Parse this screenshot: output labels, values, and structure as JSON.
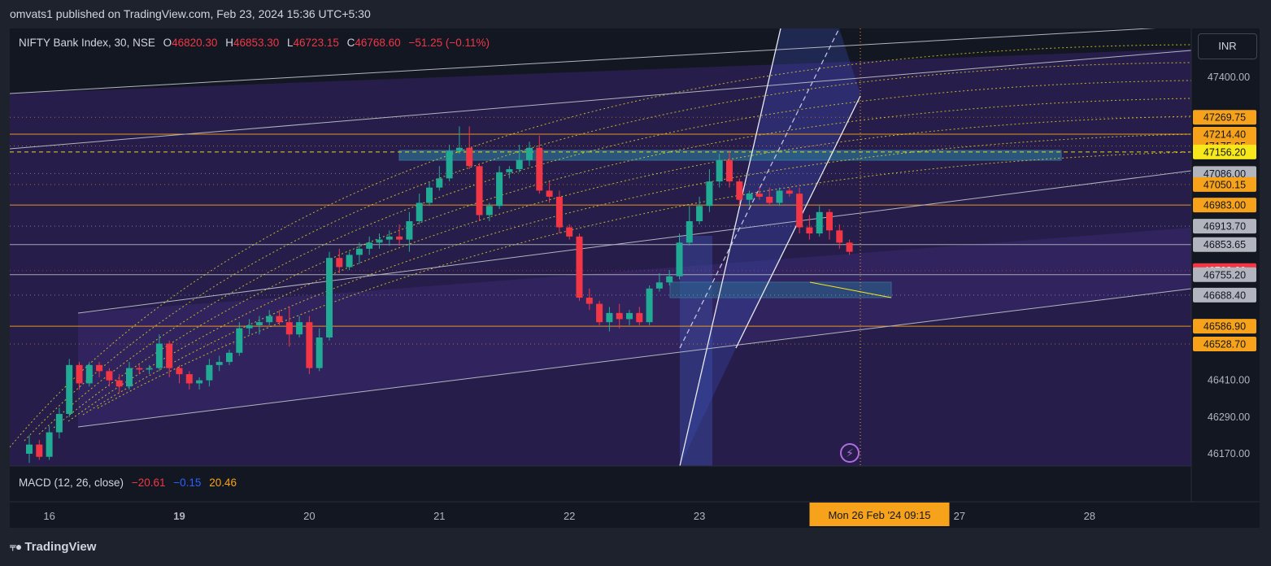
{
  "publisher_line": "omvats1 published on TradingView.com, Feb 23, 2024 15:36 UTC+5:30",
  "legend": {
    "symbol": "NIFTY Bank Index, 30, NSE",
    "open_label": "O",
    "open": "46820.30",
    "high_label": "H",
    "high": "46853.30",
    "low_label": "L",
    "low": "46723.15",
    "close_label": "C",
    "close": "46768.60",
    "change": "−51.25 (−0.11%)"
  },
  "macd": {
    "label": "MACD (12, 26, close)",
    "hist": "−20.61",
    "macd": "−0.15",
    "signal": "20.46"
  },
  "currency_button": "INR",
  "footer": {
    "logo_icon": "tradingview-logo-icon",
    "brand": "TradingView"
  },
  "alert_icon": "lightning-icon",
  "chart_data": {
    "type": "candlestick",
    "symbol": "NIFTY Bank Index",
    "interval": "30",
    "ylim": [
      46130,
      47560
    ],
    "y_ticks": [
      47400.0,
      46410.0,
      46290.0,
      46170.0
    ],
    "x_ticks": [
      {
        "label": "16",
        "index": 2
      },
      {
        "label": "19",
        "index": 15
      },
      {
        "label": "20",
        "index": 28
      },
      {
        "label": "21",
        "index": 41
      },
      {
        "label": "22",
        "index": 54
      },
      {
        "label": "23",
        "index": 67
      },
      {
        "label": "27",
        "index": 93
      },
      {
        "label": "28",
        "index": 106
      }
    ],
    "crosshair_time": "Mon 26 Feb '24   09:15",
    "crosshair_index": 85,
    "last_price": "46768.60",
    "price_labels": [
      {
        "value": 47269.75,
        "text": "47269.75",
        "color": "#f7a21b",
        "line": false
      },
      {
        "value": 47214.4,
        "text": "47214.40",
        "color": "#f7a21b",
        "line": true
      },
      {
        "value": 47175.95,
        "text": "47175.95",
        "color": "#f7a21b",
        "line": false
      },
      {
        "value": 47156.2,
        "text": "47156.20",
        "color": "#f7e81b",
        "line": true,
        "dashed": true
      },
      {
        "value": 47086.0,
        "text": "47086.00",
        "color": "#b2b5be",
        "line": false
      },
      {
        "value": 47050.15,
        "text": "47050.15",
        "color": "#f7a21b",
        "line": false
      },
      {
        "value": 46983.0,
        "text": "46983.00",
        "color": "#f7a21b",
        "line": true
      },
      {
        "value": 46913.7,
        "text": "46913.70",
        "color": "#b2b5be",
        "line": false
      },
      {
        "value": 46853.65,
        "text": "46853.65",
        "color": "#b2b5be",
        "line": true
      },
      {
        "value": 46768.6,
        "text": "46768.60",
        "color": "#f23645",
        "line": false
      },
      {
        "value": 46755.2,
        "text": "46755.20",
        "color": "#b2b5be",
        "line": true
      },
      {
        "value": 46688.4,
        "text": "46688.40",
        "color": "#b2b5be",
        "line": false
      },
      {
        "value": 46586.9,
        "text": "46586.90",
        "color": "#f7a21b",
        "line": true
      },
      {
        "value": 46528.7,
        "text": "46528.70",
        "color": "#f7a21b",
        "line": false
      }
    ],
    "candles": [
      [
        46170,
        46230,
        46140,
        46200
      ],
      [
        46200,
        46215,
        46150,
        46160
      ],
      [
        46160,
        46260,
        46150,
        46240
      ],
      [
        46240,
        46320,
        46220,
        46300
      ],
      [
        46300,
        46480,
        46290,
        46460
      ],
      [
        46460,
        46470,
        46380,
        46400
      ],
      [
        46400,
        46470,
        46390,
        46460
      ],
      [
        46460,
        46470,
        46420,
        46440
      ],
      [
        46440,
        46450,
        46390,
        46410
      ],
      [
        46410,
        46430,
        46370,
        46390
      ],
      [
        46390,
        46470,
        46380,
        46450
      ],
      [
        46450,
        46460,
        46430,
        46445
      ],
      [
        46445,
        46460,
        46430,
        46450
      ],
      [
        46450,
        46560,
        46440,
        46530
      ],
      [
        46530,
        46540,
        46420,
        46450
      ],
      [
        46450,
        46460,
        46400,
        46430
      ],
      [
        46430,
        46440,
        46380,
        46400
      ],
      [
        46400,
        46420,
        46380,
        46410
      ],
      [
        46410,
        46480,
        46390,
        46460
      ],
      [
        46460,
        46490,
        46440,
        46470
      ],
      [
        46470,
        46510,
        46460,
        46500
      ],
      [
        46500,
        46600,
        46490,
        46580
      ],
      [
        46580,
        46610,
        46560,
        46590
      ],
      [
        46590,
        46620,
        46560,
        46600
      ],
      [
        46600,
        46640,
        46590,
        46620
      ],
      [
        46620,
        46640,
        46590,
        46600
      ],
      [
        46600,
        46650,
        46520,
        46560
      ],
      [
        46560,
        46620,
        46550,
        46600
      ],
      [
        46600,
        46620,
        46430,
        46450
      ],
      [
        46450,
        46580,
        46440,
        46550
      ],
      [
        46550,
        46830,
        46540,
        46810
      ],
      [
        46810,
        46840,
        46760,
        46780
      ],
      [
        46780,
        46830,
        46770,
        46820
      ],
      [
        46820,
        46860,
        46790,
        46840
      ],
      [
        46840,
        46880,
        46820,
        46860
      ],
      [
        46860,
        46890,
        46840,
        46870
      ],
      [
        46870,
        46900,
        46850,
        46880
      ],
      [
        46880,
        46920,
        46850,
        46870
      ],
      [
        46870,
        46960,
        46830,
        46930
      ],
      [
        46930,
        47020,
        46920,
        46990
      ],
      [
        46990,
        47060,
        46980,
        47040
      ],
      [
        47040,
        47110,
        47030,
        47070
      ],
      [
        47070,
        47180,
        47060,
        47160
      ],
      [
        47160,
        47240,
        47150,
        47170
      ],
      [
        47170,
        47240,
        47100,
        47110
      ],
      [
        47110,
        47120,
        46930,
        46950
      ],
      [
        46950,
        46990,
        46930,
        46980
      ],
      [
        46980,
        47110,
        46970,
        47090
      ],
      [
        47090,
        47110,
        47070,
        47100
      ],
      [
        47100,
        47180,
        47090,
        47130
      ],
      [
        47130,
        47190,
        47110,
        47170
      ],
      [
        47170,
        47210,
        47020,
        47030
      ],
      [
        47030,
        47060,
        46990,
        47010
      ],
      [
        47010,
        47030,
        46890,
        46910
      ],
      [
        46910,
        46920,
        46870,
        46880
      ],
      [
        46880,
        46890,
        46670,
        46680
      ],
      [
        46680,
        46710,
        46640,
        46660
      ],
      [
        46660,
        46670,
        46590,
        46600
      ],
      [
        46600,
        46650,
        46570,
        46630
      ],
      [
        46630,
        46660,
        46580,
        46610
      ],
      [
        46610,
        46640,
        46590,
        46630
      ],
      [
        46630,
        46650,
        46590,
        46600
      ],
      [
        46600,
        46720,
        46590,
        46710
      ],
      [
        46710,
        46760,
        46700,
        46730
      ],
      [
        46730,
        46770,
        46720,
        46750
      ],
      [
        46750,
        46890,
        46740,
        46860
      ],
      [
        46860,
        46980,
        46850,
        46930
      ],
      [
        46930,
        47010,
        46920,
        46980
      ],
      [
        46980,
        47100,
        46960,
        47060
      ],
      [
        47060,
        47150,
        47040,
        47130
      ],
      [
        47130,
        47160,
        47040,
        47060
      ],
      [
        47060,
        47070,
        46980,
        47000
      ],
      [
        47000,
        47030,
        46980,
        47020
      ],
      [
        47020,
        47040,
        47000,
        47010
      ],
      [
        47010,
        47040,
        46980,
        46990
      ],
      [
        46990,
        47040,
        46980,
        47030
      ],
      [
        47030,
        47040,
        47010,
        47020
      ],
      [
        47020,
        47040,
        46890,
        46910
      ],
      [
        46910,
        46950,
        46870,
        46890
      ],
      [
        46890,
        46980,
        46880,
        46960
      ],
      [
        46960,
        46970,
        46870,
        46900
      ],
      [
        46900,
        46920,
        46840,
        46860
      ],
      [
        46860,
        46870,
        46820,
        46830
      ]
    ]
  }
}
